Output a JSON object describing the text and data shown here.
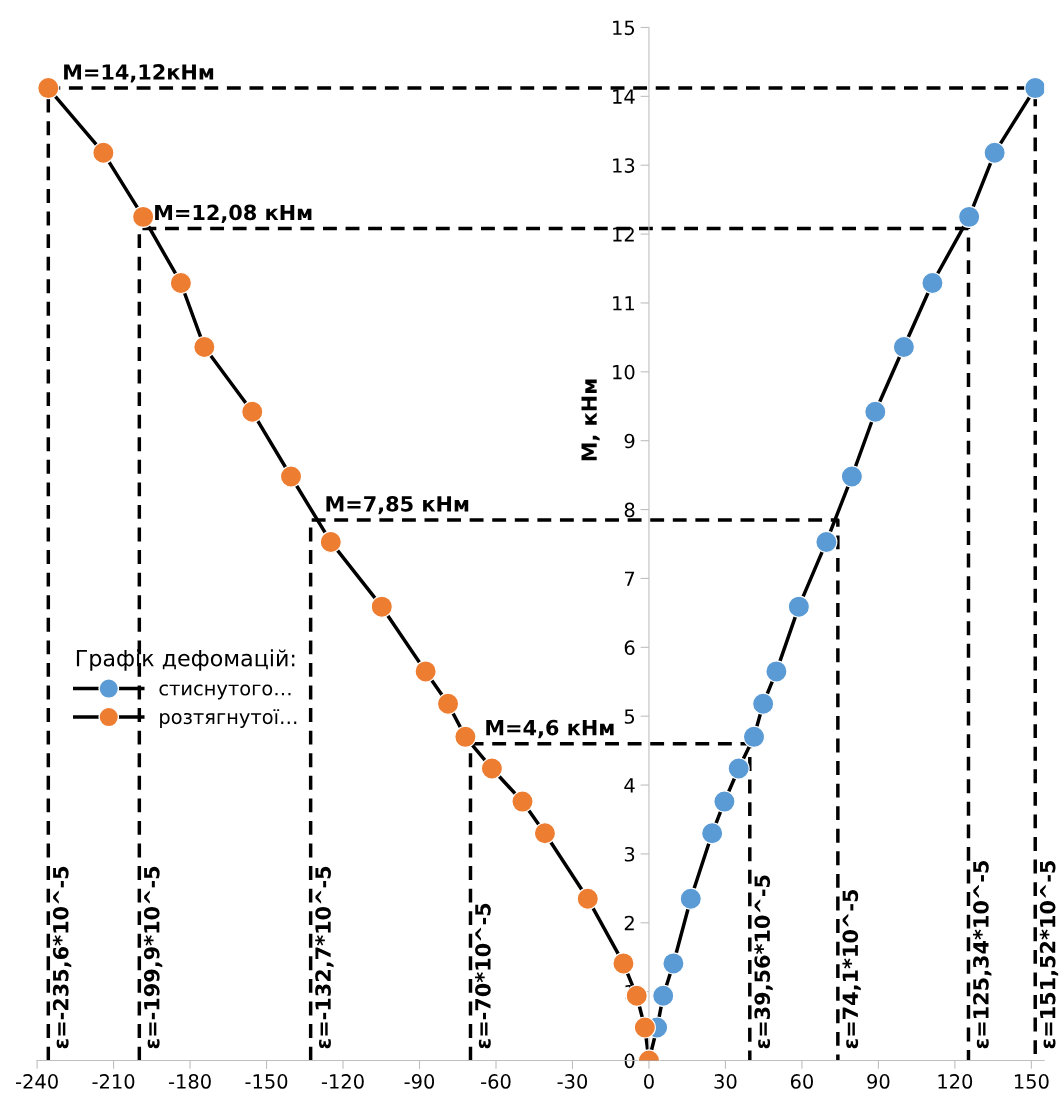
{
  "chart_data": {
    "type": "line",
    "ylabel": "M, кНм",
    "legend_title": "Графік дефомацій:",
    "legend": "left",
    "grid": false,
    "xlim": [
      -240,
      155
    ],
    "xticks": [
      -240,
      -210,
      -180,
      -150,
      -120,
      -90,
      -60,
      -30,
      0,
      30,
      60,
      90,
      120,
      150
    ],
    "ylim": [
      0,
      15
    ],
    "yticks": [
      0,
      1,
      2,
      3,
      4,
      5,
      6,
      7,
      8,
      9,
      10,
      11,
      12,
      13,
      14,
      15
    ],
    "series": [
      {
        "name": "стиснутого…",
        "color": "#5b9bd5",
        "marker": "circle",
        "x": [
          0,
          3.2,
          5.6,
          9.6,
          16.4,
          24.8,
          29.6,
          35.2,
          41.2,
          44.8,
          50,
          58.8,
          69.6,
          79.6,
          88.8,
          100,
          111.2,
          125.6,
          135.6,
          151.52
        ],
        "values": [
          0,
          0.48,
          0.94,
          1.41,
          2.35,
          3.3,
          3.76,
          4.24,
          4.7,
          5.18,
          5.65,
          6.59,
          7.53,
          8.48,
          9.42,
          10.36,
          11.29,
          12.25,
          13.18,
          14.12
        ]
      },
      {
        "name": "розтягнутої…",
        "color": "#ed7d31",
        "marker": "circle",
        "x": [
          0,
          -1.6,
          -4.8,
          -10,
          -24,
          -40.8,
          -49.6,
          -61.6,
          -72,
          -78.8,
          -87.6,
          -104.8,
          -124.8,
          -140.4,
          -155.6,
          -174.4,
          -183.6,
          -198.4,
          -214,
          -235.6
        ],
        "values": [
          0,
          0.48,
          0.94,
          1.41,
          2.35,
          3.3,
          3.76,
          4.24,
          4.7,
          5.18,
          5.65,
          6.59,
          7.53,
          8.48,
          9.42,
          10.36,
          11.29,
          12.25,
          13.18,
          14.12
        ]
      },
      {
        "color": "#000000",
        "type": "line",
        "marker": "none",
        "line_style": "dashed",
        "x": [
          -235.6,
          -235.6,
          151.52,
          151.52
        ],
        "values": [
          0,
          14.12,
          14.12,
          0
        ]
      },
      {
        "color": "#000000",
        "type": "line",
        "marker": "none",
        "line_style": "dashed",
        "x": [
          -199.9,
          -199.9,
          125.34,
          125.34
        ],
        "values": [
          0,
          12.08,
          12.08,
          0
        ]
      },
      {
        "color": "#000000",
        "type": "line",
        "marker": "none",
        "line_style": "dashed",
        "x": [
          -132.7,
          -132.7,
          74.1,
          74.1
        ],
        "values": [
          0,
          7.85,
          7.85,
          0
        ]
      },
      {
        "color": "#000000",
        "type": "line",
        "marker": "none",
        "line_style": "dashed",
        "x": [
          -70,
          -70,
          39.56,
          39.56
        ],
        "values": [
          0,
          4.6,
          4.6,
          0
        ]
      }
    ],
    "annotations": [
      {
        "text": "M=14,12кНм",
        "x": -235.6,
        "y": 14.12
      },
      {
        "text": "M=12,08 кНм",
        "x": -199.9,
        "y": 12.08
      },
      {
        "text": "M=7,85 кНм",
        "x": -132.7,
        "y": 7.85
      },
      {
        "text": "M=4,6 кНм",
        "x": -70,
        "y": 4.6
      },
      {
        "text": "ε=-235,6*10^-5",
        "x": -235.6,
        "y": 0
      },
      {
        "text": "ε=-199,9*10^-5",
        "x": -199.9,
        "y": 0
      },
      {
        "text": "ε=-132,7*10^-5",
        "x": -132.7,
        "y": 0
      },
      {
        "text": "ε=-70*10^-5",
        "x": -70,
        "y": 0
      },
      {
        "text": "ε=39,56*10^-5",
        "x": 39.56,
        "y": 0
      },
      {
        "text": "ε=74,1*10^-5",
        "x": 74.1,
        "y": 0
      },
      {
        "text": "ε=125,34*10^-5",
        "x": 125.34,
        "y": 0
      },
      {
        "text": "ε=151,52*10^-5",
        "x": 151.52,
        "y": 0
      }
    ]
  }
}
